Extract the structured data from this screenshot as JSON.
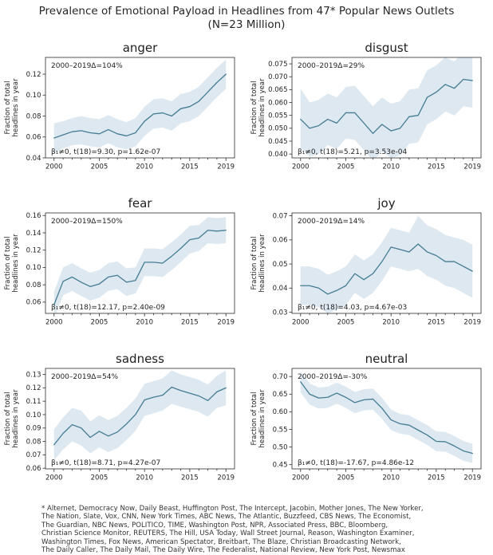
{
  "title": {
    "line1": "Prevalence of Emotional Payload in Headlines from 47* Popular News Outlets",
    "line2": "(N=23 Million)"
  },
  "colors": {
    "line": "#447c93",
    "band": "#dde8f1",
    "axis": "#2b2b2b",
    "text": "#1f1f1f"
  },
  "years": [
    2000,
    2001,
    2002,
    2003,
    2004,
    2005,
    2006,
    2007,
    2008,
    2009,
    2010,
    2011,
    2012,
    2013,
    2014,
    2015,
    2016,
    2017,
    2018,
    2019
  ],
  "chart_data": [
    {
      "type": "line",
      "title": "anger",
      "delta_label": "2000–2019Δ=104%",
      "stats_label": "β₁≠0, t(18)=9.30, p=1.62e-07",
      "ylabel_line1": "Fraction of total",
      "ylabel_line2": "headlines in year",
      "values": [
        0.059,
        0.062,
        0.065,
        0.066,
        0.064,
        0.063,
        0.067,
        0.063,
        0.061,
        0.064,
        0.075,
        0.082,
        0.083,
        0.08,
        0.087,
        0.089,
        0.094,
        0.103,
        0.112,
        0.12
      ],
      "band_lower": [
        0.045,
        0.049,
        0.052,
        0.053,
        0.051,
        0.05,
        0.054,
        0.05,
        0.048,
        0.051,
        0.061,
        0.068,
        0.069,
        0.066,
        0.073,
        0.075,
        0.08,
        0.089,
        0.098,
        0.106
      ],
      "band_upper": [
        0.073,
        0.075,
        0.078,
        0.08,
        0.078,
        0.077,
        0.081,
        0.077,
        0.074,
        0.078,
        0.089,
        0.096,
        0.097,
        0.094,
        0.101,
        0.103,
        0.108,
        0.117,
        0.126,
        0.134
      ],
      "ylim": [
        0.04,
        0.136
      ],
      "yticks": [
        0.04,
        0.06,
        0.08,
        0.1,
        0.12
      ],
      "ytick_decimals": 2,
      "xlim": [
        1999.05,
        2019.95
      ],
      "xticks": [
        2000,
        2005,
        2010,
        2015,
        2019
      ]
    },
    {
      "type": "line",
      "title": "disgust",
      "delta_label": "2000–2019Δ=29%",
      "stats_label": "β₁≠0, t(18)=5.21, p=3.53e-04",
      "ylabel_line1": "Fraction of total",
      "ylabel_line2": "headlines in year",
      "values": [
        0.0535,
        0.05,
        0.051,
        0.0535,
        0.052,
        0.056,
        0.056,
        0.052,
        0.048,
        0.0515,
        0.049,
        0.05,
        0.0545,
        0.055,
        0.062,
        0.064,
        0.067,
        0.0655,
        0.069,
        0.0685
      ],
      "band_lower": [
        0.0425,
        0.039,
        0.04,
        0.0435,
        0.042,
        0.046,
        0.0455,
        0.0415,
        0.0375,
        0.041,
        0.0385,
        0.0395,
        0.044,
        0.0445,
        0.0515,
        0.0535,
        0.0565,
        0.055,
        0.0585,
        0.058
      ],
      "band_upper": [
        0.0655,
        0.06,
        0.061,
        0.0635,
        0.062,
        0.066,
        0.0665,
        0.0625,
        0.0585,
        0.062,
        0.0595,
        0.0605,
        0.065,
        0.0655,
        0.0725,
        0.0745,
        0.0775,
        0.076,
        0.0795,
        0.079
      ],
      "ylim": [
        0.0385,
        0.0775
      ],
      "yticks": [
        0.04,
        0.045,
        0.05,
        0.055,
        0.06,
        0.065,
        0.07,
        0.075
      ],
      "ytick_decimals": 3,
      "xlim": [
        1999.05,
        2019.95
      ],
      "xticks": [
        2000,
        2005,
        2010,
        2015,
        2019
      ]
    },
    {
      "type": "line",
      "title": "fear",
      "delta_label": "2000–2019Δ=150%",
      "stats_label": "β₁≠0, t(18)=12.17, p=2.40e-09",
      "ylabel_line1": "Fraction of total",
      "ylabel_line2": "headlines in year",
      "values": [
        0.057,
        0.084,
        0.089,
        0.083,
        0.078,
        0.081,
        0.089,
        0.091,
        0.083,
        0.085,
        0.106,
        0.106,
        0.105,
        0.113,
        0.122,
        0.132,
        0.134,
        0.143,
        0.142,
        0.143
      ],
      "band_lower": [
        0.042,
        0.068,
        0.073,
        0.067,
        0.062,
        0.065,
        0.073,
        0.075,
        0.067,
        0.07,
        0.09,
        0.09,
        0.089,
        0.097,
        0.106,
        0.116,
        0.119,
        0.128,
        0.127,
        0.128
      ],
      "band_upper": [
        0.072,
        0.1,
        0.105,
        0.099,
        0.094,
        0.097,
        0.105,
        0.107,
        0.099,
        0.1,
        0.122,
        0.122,
        0.121,
        0.129,
        0.138,
        0.148,
        0.149,
        0.158,
        0.157,
        0.158
      ],
      "ylim": [
        0.047,
        0.163
      ],
      "yticks": [
        0.06,
        0.08,
        0.1,
        0.12,
        0.14,
        0.16
      ],
      "ytick_decimals": 2,
      "xlim": [
        1999.05,
        2019.95
      ],
      "xticks": [
        2000,
        2005,
        2010,
        2015,
        2019
      ]
    },
    {
      "type": "line",
      "title": "joy",
      "delta_label": "2000–2019Δ=14%",
      "stats_label": "β₁≠0, t(18)=4.03, p=4.67e-03",
      "ylabel_line1": "Fraction of total",
      "ylabel_line2": "headlines in year",
      "values": [
        0.041,
        0.041,
        0.04,
        0.0375,
        0.039,
        0.041,
        0.046,
        0.0435,
        0.046,
        0.051,
        0.057,
        0.056,
        0.055,
        0.0583,
        0.055,
        0.0535,
        0.051,
        0.051,
        0.049,
        0.047
      ],
      "band_lower": [
        0.033,
        0.033,
        0.032,
        0.0295,
        0.031,
        0.033,
        0.038,
        0.0355,
        0.038,
        0.043,
        0.049,
        0.048,
        0.047,
        0.048,
        0.045,
        0.0435,
        0.041,
        0.04,
        0.038,
        0.036
      ],
      "band_upper": [
        0.049,
        0.049,
        0.048,
        0.0455,
        0.047,
        0.049,
        0.054,
        0.0515,
        0.054,
        0.059,
        0.065,
        0.064,
        0.063,
        0.07,
        0.066,
        0.0645,
        0.062,
        0.061,
        0.06,
        0.058
      ],
      "ylim": [
        0.0295,
        0.0712
      ],
      "yticks": [
        0.03,
        0.04,
        0.05,
        0.06,
        0.07
      ],
      "ytick_decimals": 2,
      "xlim": [
        1999.05,
        2019.95
      ],
      "xticks": [
        2000,
        2005,
        2010,
        2015,
        2019
      ]
    },
    {
      "type": "line",
      "title": "sadness",
      "delta_label": "2000–2019Δ=54%",
      "stats_label": "β₁≠0, t(18)=8.71, p=4.27e-07",
      "ylabel_line1": "Fraction of total",
      "ylabel_line2": "headlines in year",
      "values": [
        0.0775,
        0.086,
        0.0925,
        0.09,
        0.083,
        0.0875,
        0.084,
        0.087,
        0.093,
        0.1,
        0.111,
        0.113,
        0.1145,
        0.1205,
        0.118,
        0.116,
        0.114,
        0.1105,
        0.117,
        0.12
      ],
      "band_lower": [
        0.066,
        0.074,
        0.08,
        0.077,
        0.071,
        0.0755,
        0.072,
        0.075,
        0.081,
        0.088,
        0.099,
        0.101,
        0.103,
        0.108,
        0.106,
        0.104,
        0.102,
        0.0985,
        0.105,
        0.107
      ],
      "band_upper": [
        0.089,
        0.098,
        0.105,
        0.103,
        0.095,
        0.0995,
        0.096,
        0.099,
        0.105,
        0.112,
        0.123,
        0.125,
        0.127,
        0.133,
        0.13,
        0.128,
        0.126,
        0.1225,
        0.129,
        0.133
      ],
      "ylim": [
        0.0595,
        0.1345
      ],
      "yticks": [
        0.06,
        0.07,
        0.08,
        0.09,
        0.1,
        0.11,
        0.12,
        0.13
      ],
      "ytick_decimals": 2,
      "xlim": [
        1999.05,
        2019.95
      ],
      "xticks": [
        2000,
        2005,
        2010,
        2015,
        2019
      ]
    },
    {
      "type": "line",
      "title": "neutral",
      "delta_label": "2000–2019Δ=-30%",
      "stats_label": "β₁≠0, t(18)=-17.67, p=4.86e-12",
      "ylabel_line1": "Fraction of total",
      "ylabel_line2": "headlines in year",
      "values": [
        0.685,
        0.65,
        0.639,
        0.641,
        0.653,
        0.641,
        0.626,
        0.634,
        0.636,
        0.61,
        0.577,
        0.566,
        0.562,
        0.548,
        0.534,
        0.516,
        0.515,
        0.503,
        0.489,
        0.482
      ],
      "band_lower": [
        0.655,
        0.62,
        0.609,
        0.611,
        0.623,
        0.611,
        0.596,
        0.604,
        0.606,
        0.58,
        0.548,
        0.538,
        0.534,
        0.52,
        0.506,
        0.488,
        0.487,
        0.475,
        0.461,
        0.455
      ],
      "band_upper": [
        0.715,
        0.68,
        0.669,
        0.671,
        0.683,
        0.671,
        0.656,
        0.664,
        0.666,
        0.64,
        0.606,
        0.594,
        0.59,
        0.576,
        0.562,
        0.544,
        0.543,
        0.531,
        0.517,
        0.509
      ],
      "ylim": [
        0.438,
        0.723
      ],
      "yticks": [
        0.45,
        0.5,
        0.55,
        0.6,
        0.65,
        0.7
      ],
      "ytick_decimals": 2,
      "xlim": [
        1999.05,
        2019.95
      ],
      "xticks": [
        2000,
        2005,
        2010,
        2015,
        2019
      ]
    }
  ],
  "footnote_lines": [
    "* Alternet, Democracy Now, Daily Beast, Huffington Post, The Intercept, Jacobin, Mother Jones, The New Yorker,",
    "The Nation, Slate, Vox, CNN, New York Times, ABC News, The Atlantic, Buzzfeed, CBS News, The Economist,",
    "The Guardian, NBC News, POLITICO, TIME, Washington Post, NPR, Associated Press, BBC, Bloomberg,",
    "Christian Science Monitor, REUTERS, The Hill, USA Today, Wall Street Journal, Reason, Washington Examiner,",
    "Washington Times, Fox News, American Spectator, Breitbart, The Blaze, Christian Broadcasting Network,",
    "The Daily Caller, The Daily Mail, The Daily Wire, The Federalist, National Review, New York Post, Newsmax"
  ]
}
